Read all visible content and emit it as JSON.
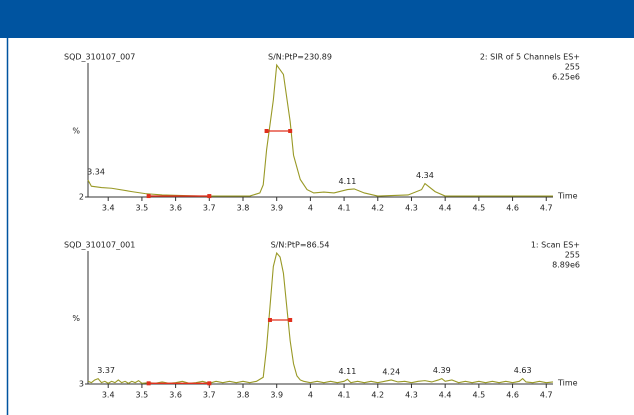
{
  "chart_data": [
    {
      "type": "line",
      "title": "SQD_310107_007",
      "sn_label": "S/N:PtP=230.89",
      "channel": "2: SIR of 5 Channels ES+",
      "mass": "255",
      "intensity": "6.25e6",
      "y_label": "%",
      "x_label": "Time",
      "color": "#999926",
      "marker_color": "#e0301e",
      "xlim": [
        3.34,
        4.72
      ],
      "xticks": [
        3.4,
        3.5,
        3.6,
        3.7,
        3.8,
        3.9,
        4.0,
        4.1,
        4.2,
        4.3,
        4.4,
        4.5,
        4.6,
        4.7
      ],
      "ylim": [
        2,
        100
      ],
      "yticks": [
        2
      ],
      "x": [
        3.34,
        3.35,
        3.38,
        3.41,
        3.47,
        3.51,
        3.56,
        3.67,
        3.82,
        3.85,
        3.86,
        3.87,
        3.89,
        3.9,
        3.92,
        3.94,
        3.95,
        3.97,
        3.99,
        4.01,
        4.04,
        4.07,
        4.11,
        4.13,
        4.16,
        4.2,
        4.29,
        4.33,
        4.34,
        4.37,
        4.4,
        4.56,
        4.72
      ],
      "values": [
        14.6,
        10,
        9,
        8.5,
        6,
        4.5,
        3.5,
        2.7,
        2.7,
        5,
        11,
        37,
        74,
        100,
        93,
        58,
        33,
        15,
        7.5,
        5,
        5.7,
        5,
        7.5,
        8,
        5,
        2.7,
        3.5,
        7.5,
        12,
        6,
        2.7,
        2.7,
        2.7
      ],
      "peak_labels": [
        3.34,
        4.11,
        4.34
      ],
      "noise_range": [
        3.52,
        3.7
      ],
      "noise_level": 2.7,
      "half_height_range": [
        3.87,
        3.94
      ],
      "half_height": 51
    },
    {
      "type": "line",
      "title": "SQD_310107_001",
      "sn_label": "S/N:PtP=86.54",
      "channel": "1: Scan ES+",
      "mass": "255",
      "intensity": "8.89e6",
      "y_label": "%",
      "x_label": "Time",
      "color": "#999926",
      "marker_color": "#e0301e",
      "xlim": [
        3.34,
        4.72
      ],
      "xticks": [
        3.4,
        3.5,
        3.6,
        3.7,
        3.8,
        3.9,
        4.0,
        4.1,
        4.2,
        4.3,
        4.4,
        4.5,
        4.6,
        4.7
      ],
      "ylim": [
        3,
        100
      ],
      "yticks": [
        3
      ],
      "x": [
        3.34,
        3.35,
        3.36,
        3.37,
        3.38,
        3.39,
        3.4,
        3.41,
        3.42,
        3.43,
        3.44,
        3.45,
        3.46,
        3.47,
        3.48,
        3.49,
        3.5,
        3.52,
        3.54,
        3.56,
        3.58,
        3.6,
        3.62,
        3.64,
        3.66,
        3.68,
        3.7,
        3.72,
        3.74,
        3.76,
        3.78,
        3.8,
        3.82,
        3.84,
        3.86,
        3.87,
        3.88,
        3.89,
        3.9,
        3.91,
        3.92,
        3.93,
        3.94,
        3.95,
        3.96,
        3.97,
        3.98,
        4.0,
        4.02,
        4.04,
        4.06,
        4.08,
        4.1,
        4.11,
        4.12,
        4.14,
        4.16,
        4.18,
        4.2,
        4.22,
        4.24,
        4.26,
        4.28,
        4.3,
        4.32,
        4.34,
        4.36,
        4.38,
        4.39,
        4.4,
        4.42,
        4.44,
        4.46,
        4.48,
        4.5,
        4.52,
        4.54,
        4.56,
        4.58,
        4.6,
        4.62,
        4.63,
        4.64,
        4.66,
        4.68,
        4.7,
        4.72
      ],
      "values": [
        5,
        4,
        6,
        7,
        4,
        5,
        3.5,
        5,
        4,
        6,
        4,
        5,
        3.5,
        5,
        4,
        5.5,
        3.5,
        4,
        3.5,
        4.5,
        3.5,
        4,
        5,
        3.5,
        4,
        5,
        3.5,
        5,
        4,
        5,
        4,
        5,
        4,
        5,
        8,
        30,
        60,
        90,
        100,
        97,
        85,
        60,
        35,
        18,
        9,
        6,
        5,
        4,
        5,
        4,
        5,
        4,
        5,
        6.5,
        4,
        5,
        4,
        5,
        4,
        5,
        6,
        4.5,
        5,
        4,
        5,
        5.5,
        4.5,
        6,
        7,
        5,
        6,
        4,
        5,
        4,
        5,
        4,
        5,
        4,
        5,
        4,
        5,
        7,
        4.5,
        4,
        5,
        4,
        4.5
      ],
      "peak_labels": [
        3.37,
        4.11,
        4.24,
        4.39,
        4.63
      ],
      "noise_range": [
        3.52,
        3.7
      ],
      "noise_level": 3.5,
      "half_height_range": [
        3.88,
        3.94
      ],
      "half_height": 50.4
    }
  ]
}
